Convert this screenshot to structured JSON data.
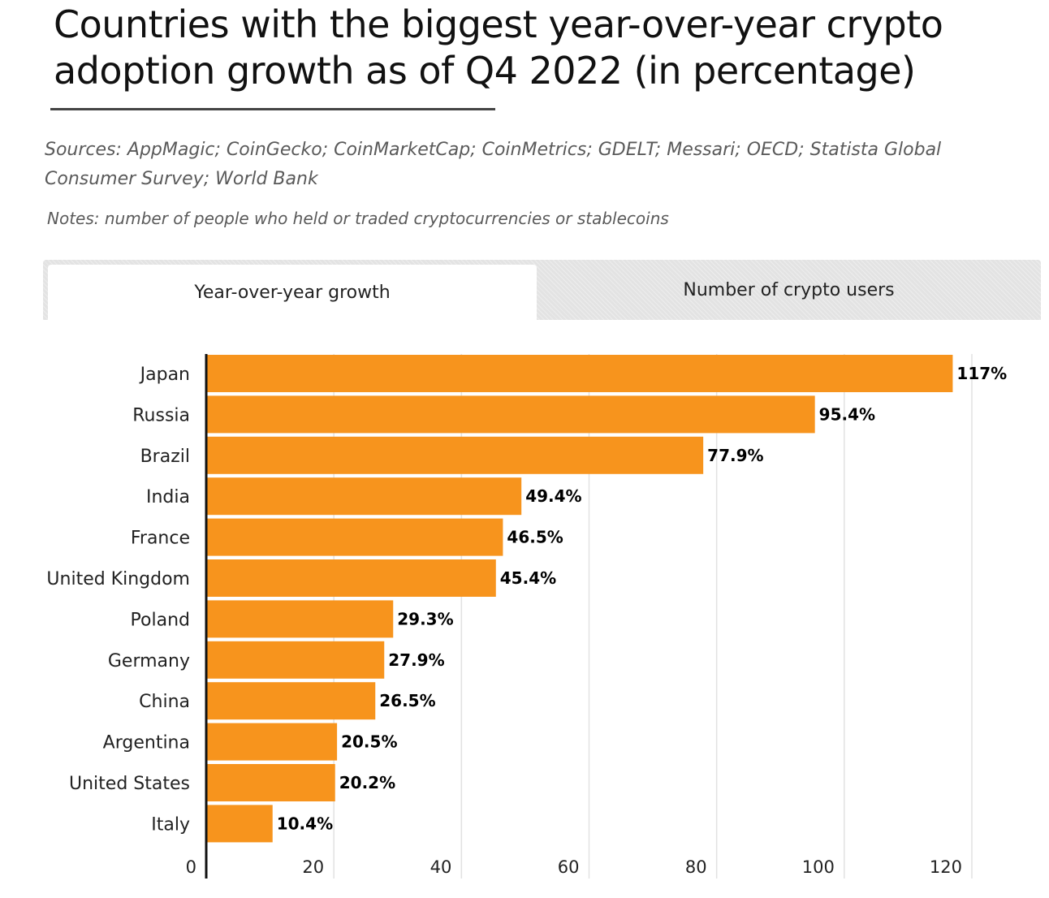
{
  "header": {
    "title": "Countries with the biggest year-over-year crypto adoption growth as of Q4 2022 (in percentage)",
    "sources": "Sources: AppMagic; CoinGecko; CoinMarketCap; CoinMetrics; GDELT; Messari; OECD; Statista Global Consumer Survey; World Bank",
    "notes": "Notes: number of people who held or traded cryptocurrencies or stablecoins"
  },
  "tabs": [
    {
      "label": "Year-over-year growth",
      "active": true
    },
    {
      "label": "Number of crypto users",
      "active": false
    }
  ],
  "colors": {
    "bar": "#f7941d",
    "axis": "#111111",
    "grid": "#e2e2e2",
    "tab_inactive": "#e3e3e3",
    "tab_active": "#ffffff"
  },
  "chart_data": {
    "type": "bar",
    "orientation": "horizontal",
    "categories": [
      "Japan",
      "Russia",
      "Brazil",
      "India",
      "France",
      "United Kingdom",
      "Poland",
      "Germany",
      "China",
      "Argentina",
      "United States",
      "Italy"
    ],
    "values": [
      117,
      95.4,
      77.9,
      49.4,
      46.5,
      45.4,
      29.3,
      27.9,
      26.5,
      20.5,
      20.2,
      10.4
    ],
    "value_labels": [
      "117%",
      "95.4%",
      "77.9%",
      "49.4%",
      "46.5%",
      "45.4%",
      "29.3%",
      "27.9%",
      "26.5%",
      "20.5%",
      "20.2%",
      "10.4%"
    ],
    "xticks": [
      0,
      20,
      40,
      60,
      80,
      100,
      120
    ],
    "xlim": [
      0,
      120
    ],
    "grid": true,
    "legend": "none"
  }
}
